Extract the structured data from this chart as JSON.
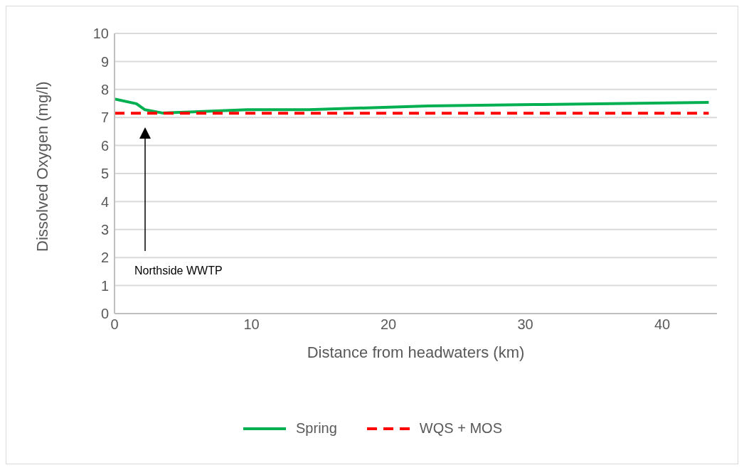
{
  "chart_data": {
    "type": "line",
    "xlabel": "Distance from headwaters (km)",
    "ylabel": "Dissolved Oxygen (mg/l)",
    "xlim": [
      0,
      44
    ],
    "xticks": [
      0,
      10,
      20,
      30,
      40
    ],
    "ylim": [
      0,
      10
    ],
    "yticks": [
      0,
      1,
      2,
      3,
      4,
      5,
      6,
      7,
      8,
      9,
      10
    ],
    "grid": "y",
    "legend": "bottom",
    "marker": "none",
    "series": [
      {
        "name": "Spring",
        "color": "#00b050",
        "line_style": "solid",
        "x": [
          0,
          1.6,
          2.2,
          3.5,
          4.7,
          9.7,
          14.2,
          22.9,
          30.6,
          43.4
        ],
        "values": [
          7.66,
          7.49,
          7.28,
          7.16,
          7.18,
          7.28,
          7.28,
          7.41,
          7.46,
          7.54
        ]
      },
      {
        "name": "WQS + MOS",
        "color": "#ff0000",
        "line_style": "dashed",
        "x": [
          0,
          43.4
        ],
        "values": [
          7.15,
          7.15
        ]
      }
    ],
    "annotations": [
      "Northside WWTP"
    ]
  }
}
